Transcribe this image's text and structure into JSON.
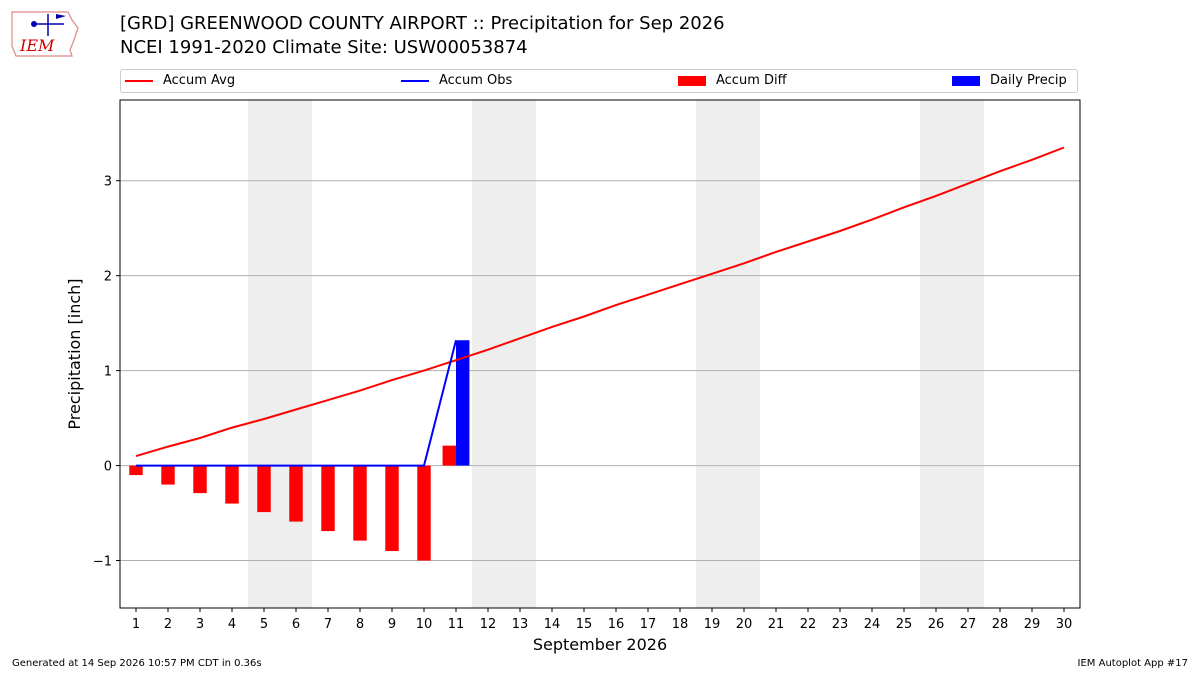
{
  "header": {
    "title": "[GRD] GREENWOOD COUNTY AIRPORT :: Precipitation for Sep 2026",
    "subtitle": "NCEI 1991-2020 Climate Site: USW00053874"
  },
  "logo": {
    "text": "IEM",
    "icon": "iem-iowa-logo"
  },
  "footer": {
    "left": "Generated at 14 Sep 2026 10:57 PM CDT in 0.36s",
    "right": "IEM Autoplot App #17"
  },
  "colors": {
    "avg": "#ff0000",
    "obs": "#0000ff",
    "diff": "#ff0000",
    "daily": "#0000ff",
    "weekend": "#eeeeee",
    "grid": "#b0b0b0"
  },
  "chart_data": {
    "type": "bar",
    "xlabel": "September 2026",
    "ylabel": "Precipitation [inch]",
    "xlim": [
      0.5,
      30.5
    ],
    "ylim": [
      -1.5,
      3.85
    ],
    "yticks": [
      -1,
      0,
      1,
      2,
      3
    ],
    "ytick_labels": [
      "−1",
      "0",
      "1",
      "2",
      "3"
    ],
    "grid": "horizontal",
    "legend_position": "top",
    "weekend_bands": [
      [
        4.5,
        6.5
      ],
      [
        11.5,
        13.5
      ],
      [
        18.5,
        20.5
      ],
      [
        25.5,
        27.5
      ]
    ],
    "days": [
      1,
      2,
      3,
      4,
      5,
      6,
      7,
      8,
      9,
      10,
      11,
      12,
      13,
      14,
      15,
      16,
      17,
      18,
      19,
      20,
      21,
      22,
      23,
      24,
      25,
      26,
      27,
      28,
      29,
      30
    ],
    "series": [
      {
        "name": "Accum Avg",
        "kind": "line",
        "x": [
          1,
          2,
          3,
          4,
          5,
          6,
          7,
          8,
          9,
          10,
          11,
          12,
          13,
          14,
          15,
          16,
          17,
          18,
          19,
          20,
          21,
          22,
          23,
          24,
          25,
          26,
          27,
          28,
          29,
          30
        ],
        "values": [
          0.1,
          0.2,
          0.29,
          0.4,
          0.49,
          0.59,
          0.69,
          0.79,
          0.9,
          1.0,
          1.11,
          1.22,
          1.34,
          1.46,
          1.57,
          1.69,
          1.8,
          1.91,
          2.02,
          2.13,
          2.25,
          2.36,
          2.47,
          2.59,
          2.72,
          2.84,
          2.97,
          3.1,
          3.22,
          3.35
        ]
      },
      {
        "name": "Accum Obs",
        "kind": "line",
        "x": [
          1,
          2,
          3,
          4,
          5,
          6,
          7,
          8,
          9,
          10,
          11
        ],
        "values": [
          0,
          0,
          0,
          0,
          0,
          0,
          0,
          0,
          0,
          0,
          1.32
        ]
      },
      {
        "name": "Accum Diff",
        "kind": "bar",
        "x": [
          1,
          2,
          3,
          4,
          5,
          6,
          7,
          8,
          9,
          10,
          11
        ],
        "values": [
          -0.1,
          -0.2,
          -0.29,
          -0.4,
          -0.49,
          -0.59,
          -0.69,
          -0.79,
          -0.9,
          -1.0,
          0.21
        ]
      },
      {
        "name": "Daily Precip",
        "kind": "bar",
        "x": [
          11
        ],
        "values": [
          1.32
        ]
      }
    ]
  }
}
